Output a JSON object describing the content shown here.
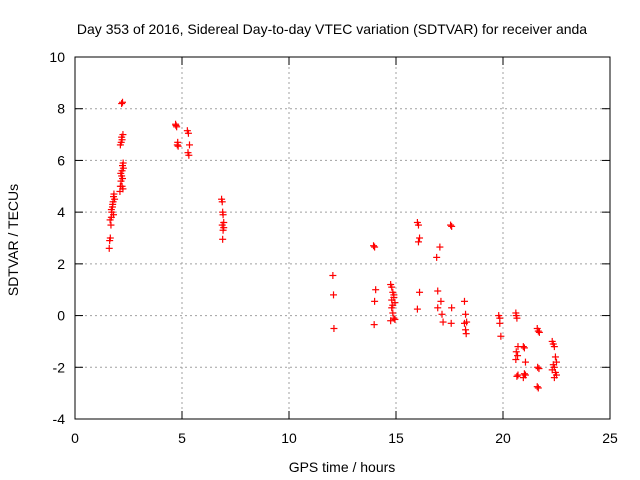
{
  "chart_data": {
    "type": "scatter",
    "title": "Day 353 of 2016, Sidereal Day-to-day VTEC variation (SDTVAR) for receiver anda",
    "xlabel": "GPS time / hours",
    "ylabel": "SDTVAR / TECUs",
    "xlim": [
      0,
      25
    ],
    "ylim": [
      -4,
      10
    ],
    "xticks": [
      "0",
      "5",
      "10",
      "15",
      "20",
      "25"
    ],
    "yticks": [
      "-4",
      "-2",
      "0",
      "2",
      "4",
      "6",
      "8",
      "10"
    ],
    "grid": true,
    "legend": "none",
    "marker": "+",
    "color": "#ff0000",
    "series": [
      {
        "name": "SDTVAR",
        "x": [
          1.6,
          1.62,
          1.65,
          1.68,
          1.7,
          1.72,
          1.75,
          1.78,
          1.8,
          1.82,
          1.64,
          1.7,
          1.76,
          1.8,
          1.85,
          2.1,
          2.12,
          2.15,
          2.18,
          2.2,
          2.22,
          2.25,
          2.12,
          2.16,
          2.2,
          2.24,
          2.18,
          2.22,
          2.14,
          2.2,
          2.24,
          2.18,
          2.22,
          2.26,
          4.7,
          4.72,
          4.75,
          4.8,
          4.78,
          4.82,
          5.25,
          5.3,
          5.35,
          5.28,
          5.32,
          6.85,
          6.88,
          6.9,
          6.92,
          6.95,
          6.88,
          6.92,
          6.9,
          6.95,
          12.05,
          12.08,
          12.1,
          13.95,
          14.0,
          14.05,
          14.0,
          13.98,
          14.75,
          14.8,
          14.85,
          14.9,
          14.95,
          14.8,
          14.85,
          14.9,
          14.75,
          14.8,
          14.9,
          14.95,
          14.85,
          16.0,
          16.05,
          16.1,
          16.05,
          16.1,
          16.0,
          16.9,
          16.95,
          17.05,
          17.1,
          17.15,
          17.2,
          16.95,
          17.55,
          17.6,
          17.6,
          17.58,
          18.2,
          18.25,
          18.3,
          18.2,
          18.25,
          18.28,
          19.8,
          19.85,
          19.9,
          19.85,
          20.6,
          20.62,
          20.65,
          20.7,
          20.62,
          20.68,
          20.6,
          20.7,
          20.65,
          20.95,
          21.0,
          21.05,
          21.0,
          20.95,
          21.05,
          21.6,
          21.65,
          21.7,
          21.62,
          21.68,
          21.6,
          21.65,
          22.3,
          22.35,
          22.4,
          22.45,
          22.5,
          22.35,
          22.4,
          22.3,
          22.45,
          22.5,
          22.4
        ],
        "y": [
          2.6,
          2.9,
          3.0,
          3.5,
          3.8,
          4.0,
          4.2,
          4.4,
          4.6,
          4.7,
          3.7,
          4.1,
          4.3,
          3.9,
          4.5,
          4.8,
          5.0,
          5.2,
          5.4,
          5.6,
          5.8,
          5.9,
          6.6,
          6.7,
          6.8,
          7.0,
          8.2,
          8.25,
          5.5,
          5.0,
          4.9,
          6.9,
          5.3,
          5.7,
          7.4,
          7.35,
          7.3,
          6.7,
          6.6,
          6.55,
          7.15,
          7.05,
          6.6,
          6.3,
          6.2,
          4.5,
          4.4,
          4.0,
          3.9,
          3.6,
          3.5,
          3.3,
          2.95,
          3.4,
          1.55,
          0.8,
          -0.5,
          2.7,
          2.65,
          1.0,
          0.55,
          -0.35,
          1.2,
          1.1,
          0.9,
          0.7,
          0.5,
          0.3,
          0.1,
          -0.1,
          -0.2,
          0.6,
          0.8,
          -0.15,
          0.4,
          3.6,
          3.5,
          3.0,
          2.85,
          0.9,
          0.25,
          2.25,
          0.95,
          2.65,
          0.55,
          0.05,
          -0.25,
          0.3,
          3.5,
          3.45,
          0.3,
          -0.3,
          0.55,
          0.05,
          -0.25,
          -0.3,
          -0.55,
          -0.7,
          0.0,
          -0.3,
          -0.8,
          -0.1,
          0.1,
          0.0,
          -0.1,
          -1.2,
          -1.4,
          -1.55,
          -1.7,
          -2.3,
          -2.35,
          -1.2,
          -1.25,
          -1.8,
          -2.25,
          -2.4,
          -2.3,
          -0.5,
          -0.6,
          -0.65,
          -2.0,
          -2.05,
          -2.75,
          -2.8,
          -1.0,
          -1.1,
          -1.2,
          -1.6,
          -1.8,
          -1.9,
          -2.0,
          -2.1,
          -2.2,
          -2.3,
          -2.4
        ]
      }
    ]
  }
}
